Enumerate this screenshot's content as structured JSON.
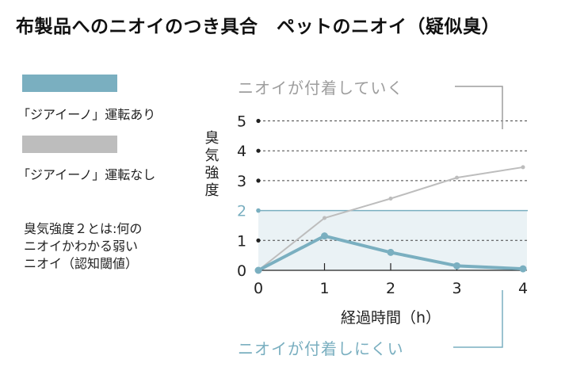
{
  "title": "布製品へのニオイのつき具合　ペットのニオイ（疑似臭）",
  "legend": [
    {
      "label": "「ジアイーノ」運転あり",
      "color": "#7aafc0"
    },
    {
      "label": "「ジアイーノ」運転なし",
      "color": "#bdbdbd"
    }
  ],
  "note": [
    "臭気強度２とは:何の",
    "ニオイかわかる弱い",
    "ニオイ（認知閾値）"
  ],
  "chart_data": {
    "type": "line",
    "xlabel": "経過時間（h）",
    "ylabel": "臭気強度",
    "x": [
      0,
      1,
      2,
      3,
      4
    ],
    "xlim": [
      0,
      4
    ],
    "ylim": [
      0,
      5.5
    ],
    "yticks": [
      0,
      1,
      2,
      3,
      4,
      5
    ],
    "xtick_labels": [
      "0",
      "1",
      "2",
      "3",
      "4"
    ],
    "ytick_labels": [
      "0",
      "1",
      "2",
      "3",
      "4",
      "5"
    ],
    "threshold": {
      "value": 2,
      "color": "#7aafc0"
    },
    "series": [
      {
        "name": "「ジアイーノ」運転あり",
        "values": [
          0,
          1.15,
          0.6,
          0.15,
          0.05
        ],
        "color": "#7aafc0"
      },
      {
        "name": "「ジアイーノ」運転なし",
        "values": [
          0,
          1.75,
          2.4,
          3.1,
          3.45
        ],
        "color": "#bdbdbd"
      }
    ],
    "annotations": [
      {
        "text": "ニオイが付着していく",
        "series": 1
      },
      {
        "text": "ニオイが付着しにくい",
        "series": 0
      }
    ]
  }
}
